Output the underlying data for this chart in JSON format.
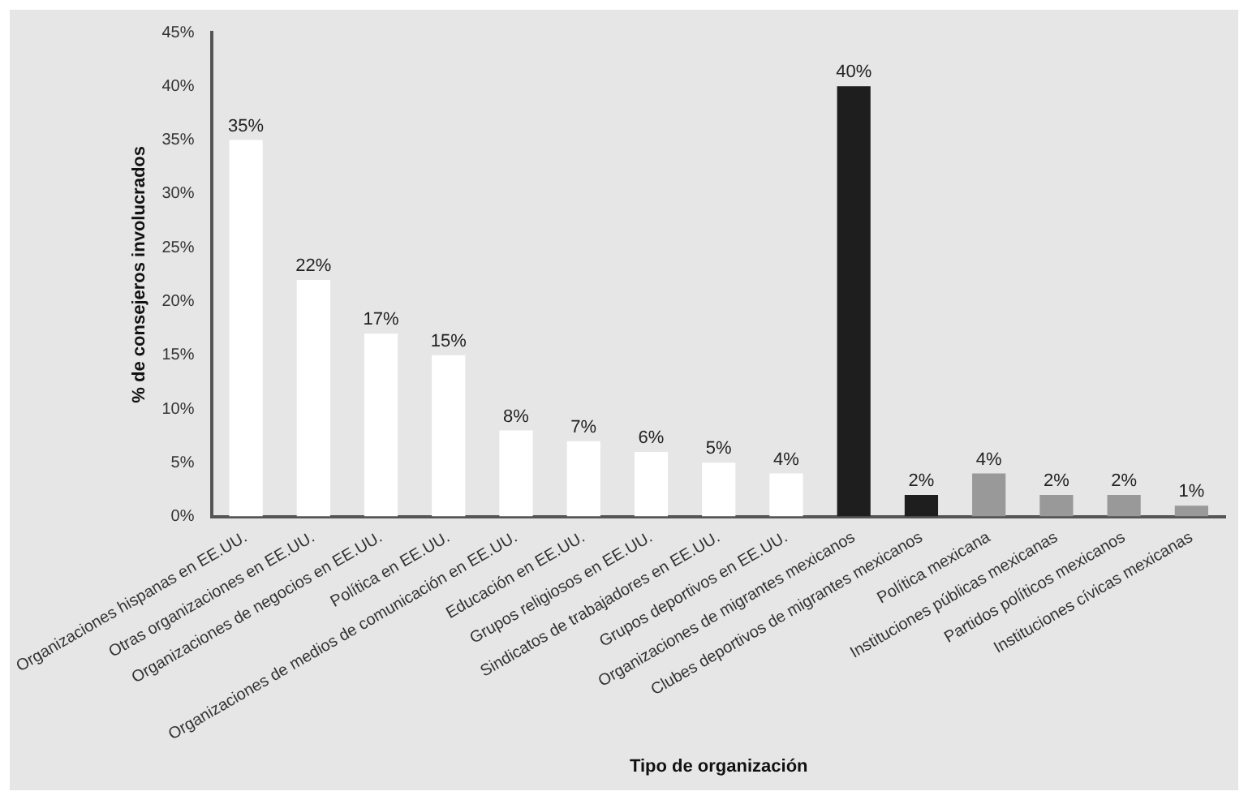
{
  "chart_data": {
    "type": "bar",
    "xlabel": "Tipo de organización",
    "ylabel": "% de consejeros involucrados",
    "categories": [
      "Organizaciones hispanas en EE.UU.",
      "Otras organizaciones en EE.UU.",
      "Organizaciones de negocios en EE.UU.",
      "Política en EE.UU.",
      "Organizaciones de medios de comunicación en EE.UU.",
      "Educación en EE.UU.",
      "Grupos religiosos en EE.UU.",
      "Sindicatos de trabajadores en EE.UU.",
      "Grupos deportivos en EE.UU.",
      "Organizaciones de migrantes mexicanos",
      "Clubes deportivos de migrantes mexicanos",
      "Política mexicana",
      "Instituciones públicas mexicanas",
      "Partidos políticos mexicanos",
      "Instituciones cívicas mexicanas"
    ],
    "values": [
      35,
      22,
      17,
      15,
      8,
      7,
      6,
      5,
      4,
      40,
      2,
      4,
      2,
      2,
      1
    ],
    "value_labels": [
      "35%",
      "22%",
      "17%",
      "15%",
      "8%",
      "7%",
      "6%",
      "5%",
      "4%",
      "40%",
      "2%",
      "4%",
      "2%",
      "2%",
      "1%"
    ],
    "colors": [
      "#ffffff",
      "#ffffff",
      "#ffffff",
      "#ffffff",
      "#ffffff",
      "#ffffff",
      "#ffffff",
      "#ffffff",
      "#ffffff",
      "#1e1e1e",
      "#1e1e1e",
      "#999999",
      "#999999",
      "#999999",
      "#999999"
    ],
    "ylim": [
      0,
      45
    ],
    "yticks": [
      {
        "value": 0,
        "label": "0%"
      },
      {
        "value": 5,
        "label": "5%"
      },
      {
        "value": 10,
        "label": "10%"
      },
      {
        "value": 15,
        "label": "15%"
      },
      {
        "value": 20,
        "label": "20%"
      },
      {
        "value": 25,
        "label": "25%"
      },
      {
        "value": 30,
        "label": "30%"
      },
      {
        "value": 35,
        "label": "35%"
      },
      {
        "value": 40,
        "label": "40%"
      },
      {
        "value": 45,
        "label": "45%"
      }
    ],
    "grid": false,
    "legend": false
  }
}
